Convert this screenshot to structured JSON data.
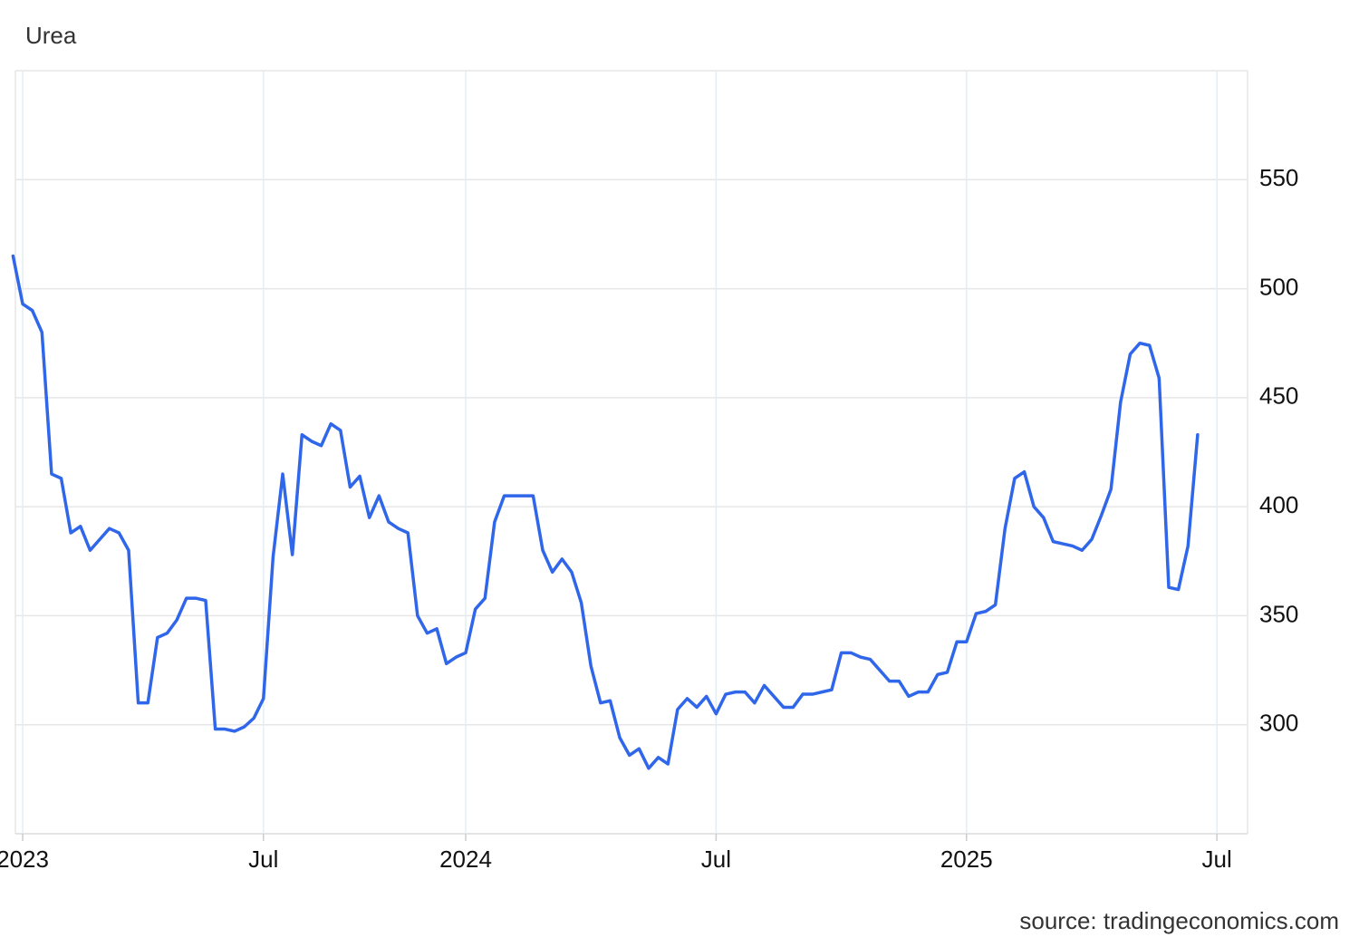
{
  "chart_data": {
    "type": "line",
    "title": "Urea",
    "source": "source: tradingeconomics.com",
    "color": "#2f66ea",
    "grid": true,
    "ylim": [
      250,
      600
    ],
    "yticks": [
      300,
      350,
      400,
      450,
      500,
      550
    ],
    "categories": [
      null,
      "2023",
      null,
      null,
      null,
      null,
      null,
      null,
      null,
      null,
      null,
      null,
      null,
      null,
      null,
      null,
      null,
      null,
      null,
      null,
      null,
      null,
      null,
      null,
      null,
      null,
      "Jul",
      null,
      null,
      null,
      null,
      null,
      null,
      null,
      null,
      null,
      null,
      null,
      null,
      null,
      null,
      null,
      null,
      null,
      null,
      null,
      null,
      "2024",
      null,
      null,
      null,
      null,
      null,
      null,
      null,
      null,
      null,
      null,
      null,
      null,
      null,
      null,
      null,
      null,
      null,
      null,
      null,
      null,
      null,
      null,
      null,
      null,
      null,
      "Jul",
      null,
      null,
      null,
      null,
      null,
      null,
      null,
      null,
      null,
      null,
      null,
      null,
      null,
      null,
      null,
      null,
      null,
      null,
      null,
      null,
      null,
      null,
      null,
      null,
      null,
      "2025",
      null,
      null,
      null,
      null,
      null,
      null,
      null,
      null,
      null,
      null,
      null,
      null,
      null,
      null,
      null,
      null,
      null,
      null,
      null,
      null,
      null,
      null,
      null,
      null,
      null,
      "Jul"
    ],
    "values": [
      515,
      493,
      490,
      480,
      415,
      413,
      388,
      391,
      380,
      385,
      390,
      388,
      380,
      310,
      310,
      340,
      342,
      348,
      358,
      358,
      357,
      298,
      298,
      297,
      299,
      303,
      312,
      377,
      415,
      378,
      433,
      430,
      428,
      438,
      435,
      409,
      414,
      395,
      405,
      393,
      390,
      388,
      350,
      342,
      344,
      328,
      331,
      333,
      353,
      358,
      393,
      405,
      405,
      405,
      405,
      380,
      370,
      376,
      370,
      356,
      327,
      310,
      311,
      294,
      286,
      289,
      280,
      285,
      282,
      307,
      312,
      308,
      313,
      305,
      314,
      315,
      315,
      310,
      318,
      313,
      308,
      308,
      314,
      314,
      315,
      316,
      333,
      333,
      331,
      330,
      325,
      320,
      320,
      313,
      315,
      315,
      323,
      324,
      338,
      338,
      351,
      352,
      355,
      390,
      413,
      416,
      400,
      395,
      384,
      383,
      382,
      380,
      385,
      396,
      408,
      448,
      470,
      475,
      474,
      459,
      363,
      362,
      382,
      433,
      null,
      null
    ]
  }
}
